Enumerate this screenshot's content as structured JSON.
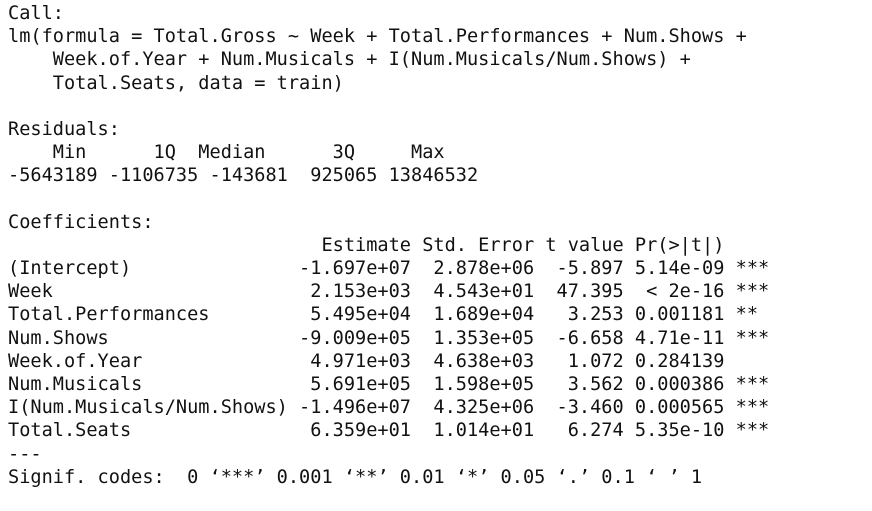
{
  "output": {
    "call_header": "Call:",
    "call_lines": [
      "lm(formula = Total.Gross ~ Week + Total.Performances + Num.Shows +",
      "    Week.of.Year + Num.Musicals + I(Num.Musicals/Num.Shows) +",
      "    Total.Seats, data = train)"
    ],
    "residuals_header": "Residuals:",
    "residuals_labels": "    Min      1Q  Median      3Q     Max ",
    "residuals_values": "-5643189 -1106735 -143681  925065 13846532 ",
    "coefficients_header": "Coefficients:",
    "coefficients_column_header": "                            Estimate Std. Error t value Pr(>|t|)    ",
    "coefficient_rows": [
      "(Intercept)               -1.697e+07  2.878e+06  -5.897 5.14e-09 ***",
      "Week                       2.153e+03  4.543e+01  47.395  < 2e-16 ***",
      "Total.Performances         5.495e+04  1.689e+04   3.253 0.001181 ** ",
      "Num.Shows                 -9.009e+05  1.353e+05  -6.658 4.71e-11 ***",
      "Week.of.Year               4.971e+03  4.638e+03   1.072 0.284139    ",
      "Num.Musicals               5.691e+05  1.598e+05   3.562 0.000386 ***",
      "I(Num.Musicals/Num.Shows) -1.496e+07  4.325e+06  -3.460 0.000565 ***",
      "Total.Seats                6.359e+01  1.014e+01   6.274 5.35e-10 ***"
    ],
    "separator": "---",
    "signif_codes": "Signif. codes:  0 ‘***’ 0.001 ‘**’ 0.01 ‘*’ 0.05 ‘.’ 0.1 ‘ ’ 1"
  }
}
